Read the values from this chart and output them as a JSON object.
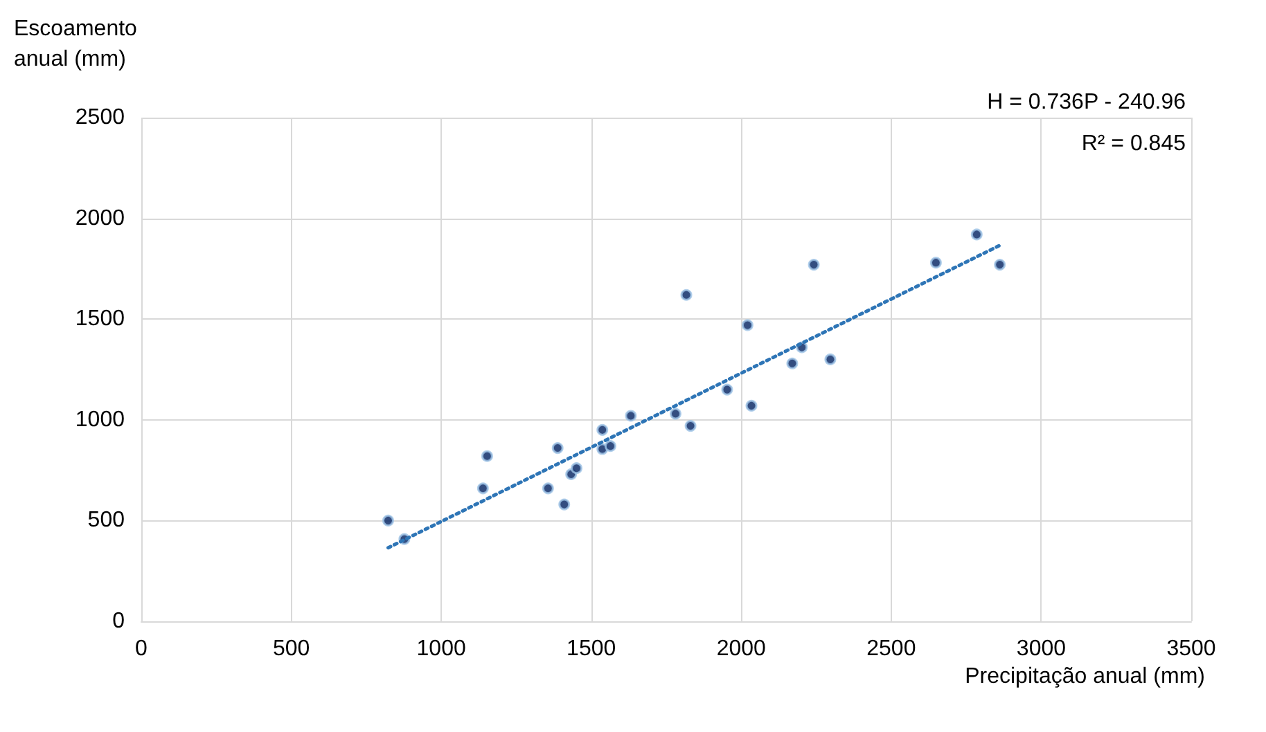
{
  "chart_data": {
    "type": "scatter",
    "xlabel": "Precipitação anual (mm)",
    "ylabel": "Escoamento anual (mm)",
    "annotations": [
      "H = 0.736P - 240.96",
      "R² = 0.845"
    ],
    "xlim": [
      0,
      3500
    ],
    "xticks": [
      0,
      500,
      1000,
      1500,
      2000,
      2500,
      3000,
      3500
    ],
    "ylim": [
      0,
      2500
    ],
    "yticks": [
      0,
      500,
      1000,
      1500,
      2000,
      2500
    ],
    "grid": true,
    "marker": "circle",
    "series": [
      {
        "color": "#002060",
        "x": [
          823,
          877,
          1139,
          1153,
          1388,
          1356,
          1410,
          1433,
          1451,
          1537,
          1537,
          1564,
          1632,
          1781,
          1831,
          1953,
          2034,
          1817,
          2021,
          2242,
          2202,
          2170,
          2297,
          2785,
          2649,
          2862
        ],
        "values": [
          500,
          408,
          660,
          820,
          860,
          660,
          580,
          730,
          760,
          950,
          855,
          870,
          1020,
          1030,
          970,
          1150,
          1070,
          1620,
          1470,
          1770,
          1360,
          1280,
          1300,
          1920,
          1780,
          1770
        ]
      },
      {
        "type": "line",
        "color": "#2e75b6",
        "line_style": "dotted",
        "marker": "none",
        "x": [
          823,
          2862
        ],
        "values": [
          365,
          1866
        ]
      }
    ]
  }
}
